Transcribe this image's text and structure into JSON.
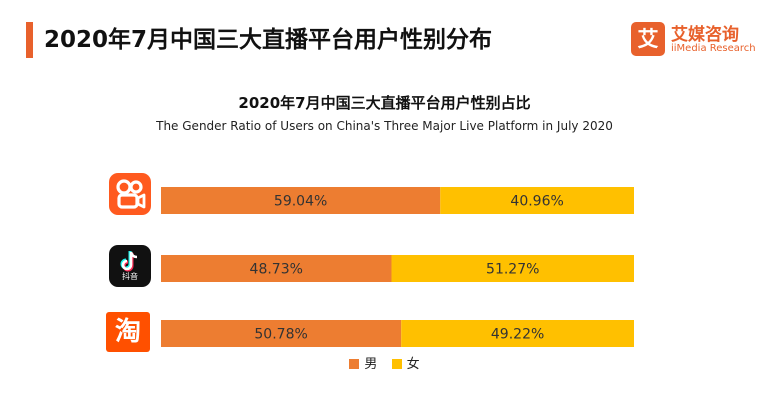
{
  "header": {
    "title": "2020年7月中国三大直播平台用户性别分布",
    "accent_color": "#E8612C"
  },
  "logo": {
    "mark": "艾",
    "name_cn": "艾媒咨询",
    "name_en": "iiMedia Research",
    "color": "#E8612C"
  },
  "platforms": [
    {
      "name": "快手",
      "icon": "kuaishou-icon",
      "color": "#FF5A1F"
    },
    {
      "name": "抖音",
      "icon": "douyin-icon",
      "color": "#111111"
    },
    {
      "name": "淘宝",
      "icon": "taobao-icon",
      "color": "#FF5000"
    }
  ],
  "icons": {
    "douyin_label": "抖音",
    "taobao_char": "淘"
  },
  "chart_data": {
    "type": "bar",
    "orientation": "horizontal",
    "stacked": true,
    "title": "2020年7月中国三大直播平台用户性别占比",
    "subtitle": "The Gender Ratio of Users on China's Three Major Live Platform in July 2020",
    "categories": [
      "快手",
      "抖音",
      "淘宝"
    ],
    "series": [
      {
        "name": "男",
        "color": "#ED7D31",
        "values": [
          59.04,
          48.73,
          50.78
        ],
        "labels": [
          "59.04%",
          "48.73%",
          "50.78%"
        ]
      },
      {
        "name": "女",
        "color": "#FFC000",
        "values": [
          40.96,
          51.27,
          49.22
        ],
        "labels": [
          "40.96%",
          "51.27%",
          "49.22%"
        ]
      }
    ],
    "xlim": [
      0,
      100
    ],
    "unit": "%",
    "grid": false,
    "legend_position": "bottom"
  }
}
